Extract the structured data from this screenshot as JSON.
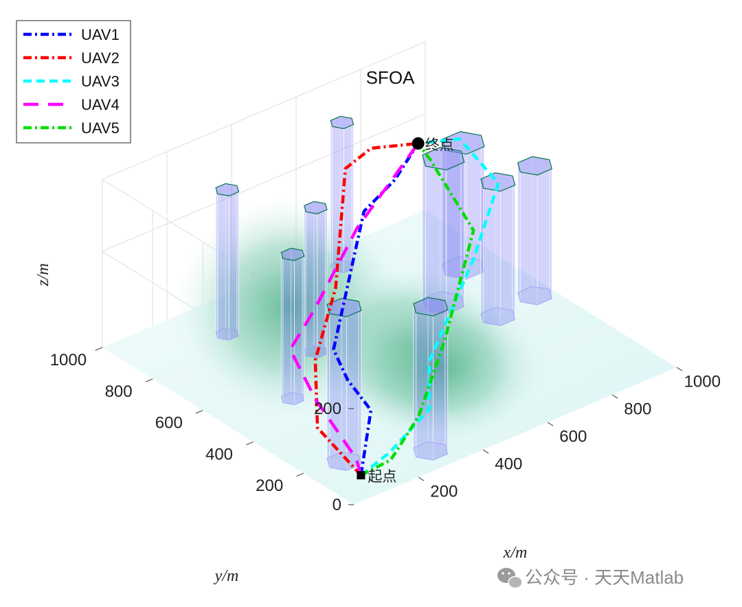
{
  "chart_data": {
    "type": "line",
    "title": "SFOA",
    "xlabel": "x/m",
    "ylabel": "y/m",
    "zlabel": "z/m",
    "x_ticks": [
      "200",
      "400",
      "600",
      "800",
      "1000"
    ],
    "y_ticks": [
      "200",
      "400",
      "600",
      "800",
      "1000"
    ],
    "z_ticks": [
      "0",
      "200"
    ],
    "xlim": [
      0,
      1000
    ],
    "ylim": [
      0,
      1000
    ],
    "zlim": [
      0,
      350
    ],
    "grid": true,
    "legend_position": "top-left",
    "start_label": "起点",
    "end_label": "终点",
    "start_point": {
      "x": 100,
      "y": 100,
      "z": 0
    },
    "end_point": {
      "x": 900,
      "y": 900,
      "z": 200
    },
    "terrain": [
      {
        "x": 350,
        "y": 700,
        "height": 150
      },
      {
        "x": 500,
        "y": 420,
        "height": 90
      },
      {
        "x": 500,
        "y": 300,
        "height": 80
      }
    ],
    "obstacles": [
      {
        "x": 110,
        "y": 180,
        "radius": 45,
        "top": 320
      },
      {
        "x": 300,
        "y": 80,
        "radius": 45,
        "top": 300
      },
      {
        "x": 200,
        "y": 500,
        "radius": 30,
        "top": 300
      },
      {
        "x": 380,
        "y": 640,
        "radius": 30,
        "top": 300
      },
      {
        "x": 270,
        "y": 850,
        "radius": 30,
        "top": 300
      },
      {
        "x": 680,
        "y": 920,
        "radius": 30,
        "top": 300
      },
      {
        "x": 760,
        "y": 620,
        "radius": 55,
        "top": 300
      },
      {
        "x": 900,
        "y": 720,
        "radius": 55,
        "top": 260
      },
      {
        "x": 820,
        "y": 480,
        "radius": 45,
        "top": 280
      },
      {
        "x": 950,
        "y": 500,
        "radius": 45,
        "top": 270
      }
    ],
    "series": [
      {
        "name": "UAV1",
        "color": "#0000ff",
        "dash": "12,5,3,5",
        "points": [
          [
            100,
            100,
            0
          ],
          [
            310,
            330,
            0
          ],
          [
            300,
            410,
            40
          ],
          [
            420,
            620,
            0
          ],
          [
            600,
            730,
            200
          ],
          [
            750,
            800,
            200
          ],
          [
            900,
            900,
            200
          ]
        ]
      },
      {
        "name": "UAV2",
        "color": "#ff0000",
        "dash": "12,5,3,5",
        "points": [
          [
            100,
            100,
            0
          ],
          [
            160,
            350,
            0
          ],
          [
            270,
            500,
            60
          ],
          [
            380,
            560,
            160
          ],
          [
            550,
            740,
            300
          ],
          [
            700,
            830,
            270
          ],
          [
            900,
            900,
            200
          ]
        ]
      },
      {
        "name": "UAV3",
        "color": "#00ffff",
        "dash": "12,7",
        "points": [
          [
            100,
            100,
            0
          ],
          [
            220,
            140,
            0
          ],
          [
            420,
            240,
            0
          ],
          [
            560,
            420,
            0
          ],
          [
            760,
            500,
            130
          ],
          [
            930,
            620,
            200
          ],
          [
            990,
            850,
            200
          ],
          [
            900,
            900,
            200
          ]
        ]
      },
      {
        "name": "UAV4",
        "color": "#ff00ff",
        "dash": "22,14",
        "points": [
          [
            100,
            100,
            0
          ],
          [
            140,
            170,
            0
          ],
          [
            240,
            460,
            0
          ],
          [
            340,
            690,
            0
          ],
          [
            500,
            800,
            0
          ],
          [
            680,
            860,
            100
          ],
          [
            900,
            900,
            200
          ]
        ]
      },
      {
        "name": "UAV5",
        "color": "#00dd00",
        "dash": "12,5,3,5",
        "points": [
          [
            100,
            100,
            0
          ],
          [
            200,
            110,
            0
          ],
          [
            380,
            230,
            0
          ],
          [
            560,
            360,
            60
          ],
          [
            760,
            500,
            190
          ],
          [
            860,
            800,
            210
          ],
          [
            900,
            900,
            200
          ]
        ]
      }
    ]
  },
  "watermark": {
    "text": "公众号 · 天天Matlab",
    "icon": "wechat-icon"
  }
}
